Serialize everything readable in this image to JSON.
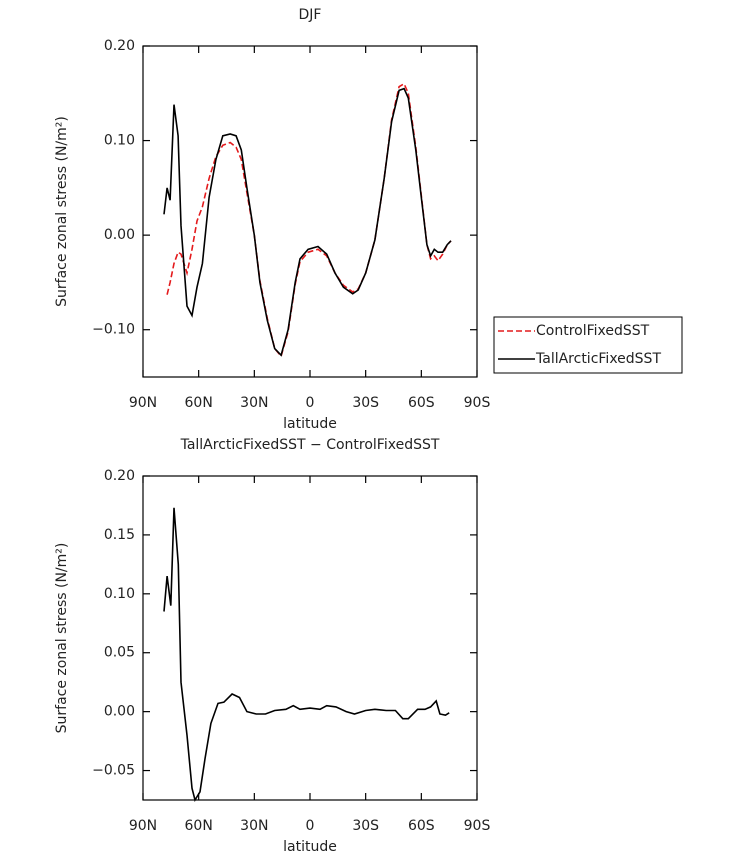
{
  "chart_data": [
    {
      "type": "line",
      "title": "DJF",
      "x_label": "latitude",
      "y_label": "Surface zonal stress (N/m²)",
      "x": [
        78.7,
        77,
        75.4,
        73.3,
        71.1,
        69.5,
        66.3,
        63.6,
        60.9,
        58,
        54.4,
        50.7,
        47,
        43,
        39.8,
        37,
        34,
        30,
        27,
        23,
        19,
        15.6,
        11.8,
        8,
        5.4,
        1,
        -4.3,
        -9,
        -13.5,
        -18,
        -23,
        -26,
        -30,
        -35,
        -40,
        -44,
        -48,
        -50.7,
        -53,
        -57,
        -60,
        -63,
        -65,
        -67,
        -69,
        -71.5,
        -74,
        -76
      ],
      "series": [
        {
          "name": "ControlFixedSST",
          "color": "#e41a1c",
          "style": "dashed",
          "values": [
            null,
            -0.063,
            -0.05,
            -0.03,
            -0.018,
            -0.02,
            -0.04,
            -0.015,
            0.015,
            0.03,
            0.06,
            0.083,
            0.095,
            0.098,
            0.093,
            0.08,
            0.045,
            0.0,
            -0.048,
            -0.088,
            -0.12,
            -0.128,
            -0.102,
            -0.052,
            -0.028,
            -0.018,
            -0.015,
            -0.022,
            -0.04,
            -0.053,
            -0.06,
            -0.057,
            -0.04,
            -0.005,
            0.06,
            0.122,
            0.157,
            0.16,
            0.15,
            0.093,
            0.042,
            -0.01,
            -0.025,
            -0.022,
            -0.027,
            -0.02,
            -0.01,
            -0.006
          ]
        },
        {
          "name": "TallArcticFixedSST",
          "color": "#000000",
          "style": "solid",
          "values": [
            0.022,
            0.05,
            0.037,
            0.138,
            0.105,
            0.01,
            -0.075,
            -0.085,
            -0.055,
            -0.03,
            0.04,
            0.08,
            0.105,
            0.107,
            0.105,
            0.09,
            0.05,
            0.0,
            -0.05,
            -0.09,
            -0.12,
            -0.127,
            -0.1,
            -0.05,
            -0.025,
            -0.015,
            -0.012,
            -0.02,
            -0.04,
            -0.055,
            -0.062,
            -0.058,
            -0.04,
            -0.005,
            0.06,
            0.12,
            0.153,
            0.155,
            0.145,
            0.09,
            0.04,
            -0.01,
            -0.022,
            -0.015,
            -0.018,
            -0.018,
            -0.01,
            -0.006
          ]
        }
      ],
      "xlim": [
        90,
        -90
      ],
      "xticks": [
        {
          "value": 90,
          "label": "90N"
        },
        {
          "value": 60,
          "label": "60N"
        },
        {
          "value": 30,
          "label": "30N"
        },
        0,
        {
          "value": -30,
          "label": "30S"
        },
        {
          "value": -60,
          "label": "60S"
        },
        {
          "value": -90,
          "label": "90S"
        }
      ],
      "ylim": [
        -0.15,
        0.2
      ],
      "yticks": [
        {
          "value": 0.2,
          "label": "0.20"
        },
        {
          "value": 0.1,
          "label": "0.10"
        },
        {
          "value": 0,
          "label": "0.00"
        },
        {
          "value": -0.1,
          "label": "−0.10"
        }
      ],
      "legend": "outside-right"
    },
    {
      "type": "line",
      "title": "TallArcticFixedSST − ControlFixedSST",
      "x_label": "latitude",
      "y_label": "Surface zonal stress (N/m²)",
      "x": [
        78.7,
        77,
        75,
        73.3,
        71,
        69.5,
        66.3,
        63.6,
        62,
        59.3,
        56.6,
        53.4,
        49.6,
        46.4,
        42,
        38,
        34,
        29,
        24,
        19,
        13,
        9,
        5.4,
        0,
        -5.4,
        -9,
        -14,
        -19.5,
        -24,
        -30,
        -35,
        -41,
        -46,
        -50,
        -53,
        -58,
        -62,
        -65,
        -68,
        -70,
        -73,
        -75
      ],
      "series": [
        {
          "color": "#000000",
          "style": "solid",
          "values": [
            0.085,
            0.115,
            0.09,
            0.173,
            0.125,
            0.025,
            -0.02,
            -0.065,
            -0.075,
            -0.068,
            -0.04,
            -0.01,
            0.007,
            0.008,
            0.015,
            0.012,
            0.0,
            -0.002,
            -0.002,
            0.001,
            0.002,
            0.005,
            0.002,
            0.003,
            0.002,
            0.005,
            0.004,
            0.0,
            -0.002,
            0.001,
            0.002,
            0.001,
            0.001,
            -0.006,
            -0.006,
            0.002,
            0.002,
            0.004,
            0.009,
            -0.002,
            -0.003,
            -0.001
          ]
        }
      ],
      "xlim": [
        90,
        -90
      ],
      "xticks": [
        {
          "value": 90,
          "label": "90N"
        },
        {
          "value": 60,
          "label": "60N"
        },
        {
          "value": 30,
          "label": "30N"
        },
        0,
        {
          "value": -30,
          "label": "30S"
        },
        {
          "value": -60,
          "label": "60S"
        },
        {
          "value": -90,
          "label": "90S"
        }
      ],
      "ylim": [
        -0.075,
        0.2
      ],
      "yticks": [
        {
          "value": 0.2,
          "label": "0.20"
        },
        {
          "value": 0.15,
          "label": "0.15"
        },
        {
          "value": 0.1,
          "label": "0.10"
        },
        {
          "value": 0.05,
          "label": "0.05"
        },
        {
          "value": 0,
          "label": "0.00"
        },
        {
          "value": -0.05,
          "label": "−0.05"
        }
      ]
    }
  ]
}
